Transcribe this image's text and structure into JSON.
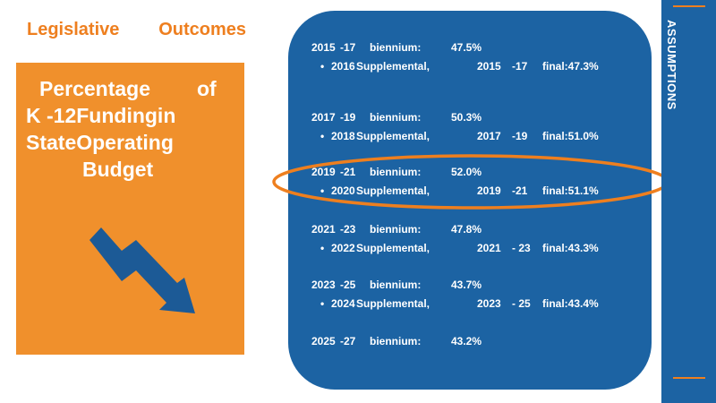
{
  "header": {
    "word1": "Legislative",
    "word2": "Outcomes"
  },
  "card": {
    "line1a": "Percentage",
    "line1b": "of",
    "line2": "K -12Fundingin",
    "line3": "StateOperating",
    "line4": "Budget",
    "arrow_icon": "down-trend-arrow-icon"
  },
  "sidebar": {
    "label": "ASSUMPTIONS"
  },
  "rows": [
    {
      "period": "2015",
      "dash": "-17",
      "word": "biennium:",
      "value": "47.5%",
      "sub": {
        "year": "2016",
        "label": "Supplemental,",
        "period": "2015",
        "dash": "-17",
        "final": "final:47.3%"
      }
    },
    {
      "period": "2017",
      "dash": "-19",
      "word": "biennium:",
      "value": "50.3%",
      "sub": {
        "year": "2018",
        "label": "Supplemental,",
        "period": "2017",
        "dash": "-19",
        "final": "final:51.0%"
      }
    },
    {
      "period": "2019",
      "dash": "-21",
      "word": "biennium:",
      "value": "52.0%",
      "sub": {
        "year": "2020",
        "label": "Supplemental,",
        "period": "2019",
        "dash": "-21",
        "final": "final:51.1%"
      }
    },
    {
      "period": "2021",
      "dash": "-23",
      "word": "biennium:",
      "value": "47.8%",
      "sub": {
        "year": "2022",
        "label": "Supplemental,",
        "period": "2021",
        "dash": "- 23",
        "final": "final:43.3%"
      }
    },
    {
      "period": "2023",
      "dash": "-25",
      "word": "biennium:",
      "value": "43.7%",
      "sub": {
        "year": "2024",
        "label": "Supplemental,",
        "period": "2023",
        "dash": "- 25",
        "final": "final:43.4%"
      }
    },
    {
      "period": "2025",
      "dash": "-27",
      "word": "biennium:",
      "value": "43.2%"
    }
  ],
  "colors": {
    "orange": "#f0902c",
    "blue": "#1c63a3",
    "highlight": "#ee7f1f"
  }
}
